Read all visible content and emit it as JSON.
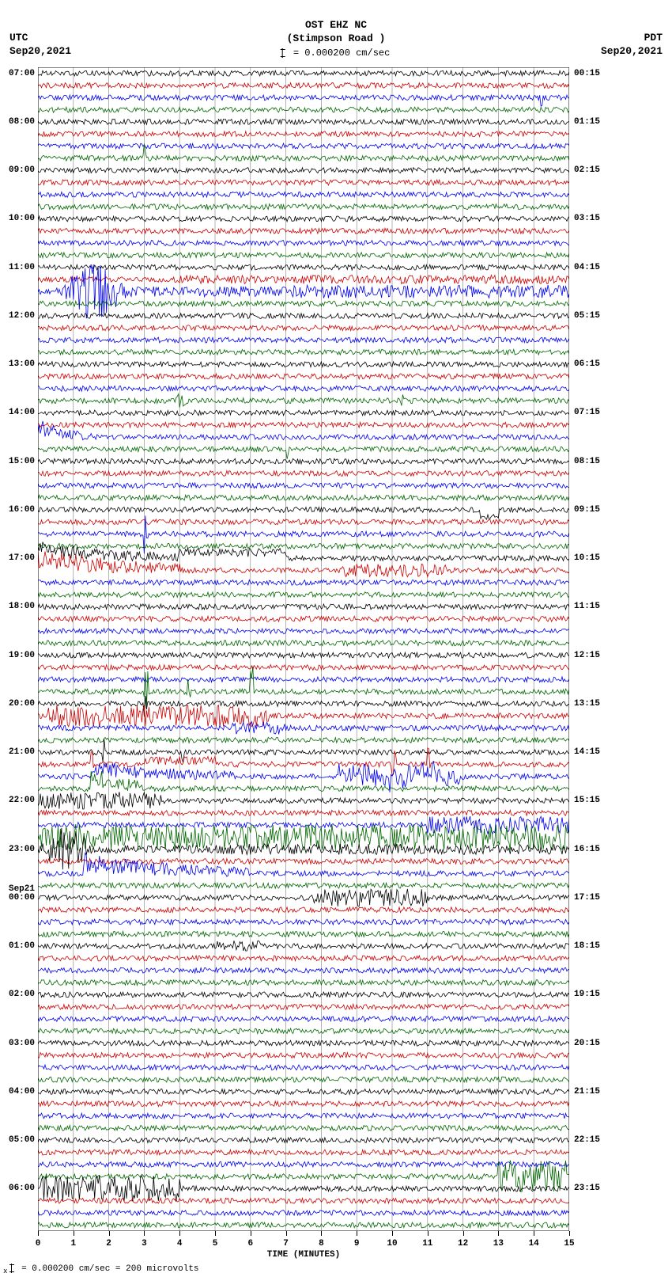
{
  "header": {
    "station": "OST EHZ NC",
    "location": "(Stimpson Road )",
    "scale_text": " = 0.000200 cm/sec",
    "left_tz": "UTC",
    "left_date": "Sep20,2021",
    "right_tz": "PDT",
    "right_date": "Sep20,2021"
  },
  "plot": {
    "type": "seismogram-helicorder",
    "width_min": 15,
    "num_traces": 96,
    "trace_colors": [
      "#000000",
      "#cc0000",
      "#0000ee",
      "#006600"
    ],
    "background_color": "#ffffff",
    "grid_color": "#808080",
    "grid_minutes": [
      0,
      1,
      2,
      3,
      4,
      5,
      6,
      7,
      8,
      9,
      10,
      11,
      12,
      13,
      14,
      15
    ],
    "noise_base_amp": 0.25,
    "events": [
      {
        "trace": 2,
        "start": 14.2,
        "end": 14.25,
        "amp": 1.5,
        "type": "spike"
      },
      {
        "trace": 7,
        "start": 3.0,
        "end": 3.05,
        "amp": 2.0,
        "type": "spike"
      },
      {
        "trace": 17,
        "start": 4.0,
        "end": 15.0,
        "amp": 0.4,
        "type": "noise"
      },
      {
        "trace": 18,
        "start": 0.5,
        "end": 7.0,
        "amp": 3.2,
        "type": "burst"
      },
      {
        "trace": 18,
        "start": 7.0,
        "end": 15.0,
        "amp": 0.6,
        "type": "noise"
      },
      {
        "trace": 27,
        "start": 3.8,
        "end": 5.2,
        "amp": 0.8,
        "type": "burst"
      },
      {
        "trace": 27,
        "start": 10.2,
        "end": 10.7,
        "amp": 0.8,
        "type": "burst"
      },
      {
        "trace": 30,
        "start": 0.0,
        "end": 1.5,
        "amp": 1.5,
        "type": "stepdecay"
      },
      {
        "trace": 31,
        "start": 7.0,
        "end": 7.1,
        "amp": 1.0,
        "type": "spike"
      },
      {
        "trace": 36,
        "start": 12.5,
        "end": 13.0,
        "amp": 1.0,
        "type": "dip"
      },
      {
        "trace": 38,
        "start": 3.0,
        "end": 3.1,
        "amp": 2.0,
        "type": "spike"
      },
      {
        "trace": 40,
        "start": 0.0,
        "end": 4.0,
        "amp": 1.2,
        "type": "stepdecay"
      },
      {
        "trace": 40,
        "start": 4.0,
        "end": 7.0,
        "amp": 0.8,
        "type": "step"
      },
      {
        "trace": 41,
        "start": 0.0,
        "end": 4.0,
        "amp": 1.8,
        "type": "stepdecay"
      },
      {
        "trace": 41,
        "start": 8.5,
        "end": 11.5,
        "amp": 0.6,
        "type": "noise"
      },
      {
        "trace": 51,
        "start": 3.0,
        "end": 3.1,
        "amp": 2.0,
        "type": "spike"
      },
      {
        "trace": 51,
        "start": 4.2,
        "end": 4.3,
        "amp": 1.2,
        "type": "spike"
      },
      {
        "trace": 51,
        "start": 6.0,
        "end": 6.1,
        "amp": 3.0,
        "type": "spike"
      },
      {
        "trace": 52,
        "start": 3.0,
        "end": 3.1,
        "amp": 2.0,
        "type": "spike"
      },
      {
        "trace": 53,
        "start": 0.3,
        "end": 6.5,
        "amp": 1.0,
        "type": "noise"
      },
      {
        "trace": 54,
        "start": 5.4,
        "end": 7.0,
        "amp": 0.6,
        "type": "noise"
      },
      {
        "trace": 56,
        "start": 1.8,
        "end": 1.9,
        "amp": 1.5,
        "type": "spike"
      },
      {
        "trace": 56,
        "start": 4.0,
        "end": 4.1,
        "amp": 1.2,
        "type": "spike"
      },
      {
        "trace": 57,
        "start": 1.5,
        "end": 1.6,
        "amp": 2.5,
        "type": "spike"
      },
      {
        "trace": 57,
        "start": 3.0,
        "end": 5.0,
        "amp": 0.5,
        "type": "step"
      },
      {
        "trace": 57,
        "start": 10.0,
        "end": 10.1,
        "amp": 2.5,
        "type": "spike"
      },
      {
        "trace": 57,
        "start": 11.0,
        "end": 11.1,
        "amp": 2.0,
        "type": "spike"
      },
      {
        "trace": 58,
        "start": 1.5,
        "end": 5.5,
        "amp": 1.2,
        "type": "stepdecay"
      },
      {
        "trace": 58,
        "start": 8.5,
        "end": 12.0,
        "amp": 1.2,
        "type": "irregular"
      },
      {
        "trace": 59,
        "start": 1.5,
        "end": 3.0,
        "amp": 2.0,
        "type": "stepdecay"
      },
      {
        "trace": 60,
        "start": 0.0,
        "end": 3.5,
        "amp": 0.8,
        "type": "noise"
      },
      {
        "trace": 62,
        "start": 11.0,
        "end": 15.0,
        "amp": 0.8,
        "type": "noise"
      },
      {
        "trace": 63,
        "start": 0.0,
        "end": 15.0,
        "amp": 1.2,
        "type": "noise"
      },
      {
        "trace": 64,
        "start": 0.0,
        "end": 5.0,
        "amp": 2.5,
        "type": "burst"
      },
      {
        "trace": 64,
        "start": 5.0,
        "end": 15.0,
        "amp": 0.5,
        "type": "noise"
      },
      {
        "trace": 66,
        "start": 1.3,
        "end": 6.0,
        "amp": 1.5,
        "type": "stepdecay"
      },
      {
        "trace": 68,
        "start": 7.8,
        "end": 11.0,
        "amp": 0.8,
        "type": "noise"
      },
      {
        "trace": 72,
        "start": 5.0,
        "end": 6.3,
        "amp": 0.5,
        "type": "noise"
      },
      {
        "trace": 91,
        "start": 13.0,
        "end": 15.0,
        "amp": 1.5,
        "type": "noise"
      },
      {
        "trace": 92,
        "start": 0.0,
        "end": 4.0,
        "amp": 1.2,
        "type": "noise"
      }
    ]
  },
  "left_labels": [
    {
      "text": "07:00",
      "trace": 0
    },
    {
      "text": "08:00",
      "trace": 4
    },
    {
      "text": "09:00",
      "trace": 8
    },
    {
      "text": "10:00",
      "trace": 12
    },
    {
      "text": "11:00",
      "trace": 16
    },
    {
      "text": "12:00",
      "trace": 20
    },
    {
      "text": "13:00",
      "trace": 24
    },
    {
      "text": "14:00",
      "trace": 28
    },
    {
      "text": "15:00",
      "trace": 32
    },
    {
      "text": "16:00",
      "trace": 36
    },
    {
      "text": "17:00",
      "trace": 40
    },
    {
      "text": "18:00",
      "trace": 44
    },
    {
      "text": "19:00",
      "trace": 48
    },
    {
      "text": "20:00",
      "trace": 52
    },
    {
      "text": "21:00",
      "trace": 56
    },
    {
      "text": "22:00",
      "trace": 60
    },
    {
      "text": "23:00",
      "trace": 64
    },
    {
      "text": "Sep21",
      "trace": 67.3
    },
    {
      "text": "00:00",
      "trace": 68
    },
    {
      "text": "01:00",
      "trace": 72
    },
    {
      "text": "02:00",
      "trace": 76
    },
    {
      "text": "03:00",
      "trace": 80
    },
    {
      "text": "04:00",
      "trace": 84
    },
    {
      "text": "05:00",
      "trace": 88
    },
    {
      "text": "06:00",
      "trace": 92
    }
  ],
  "right_labels": [
    {
      "text": "00:15",
      "trace": 0
    },
    {
      "text": "01:15",
      "trace": 4
    },
    {
      "text": "02:15",
      "trace": 8
    },
    {
      "text": "03:15",
      "trace": 12
    },
    {
      "text": "04:15",
      "trace": 16
    },
    {
      "text": "05:15",
      "trace": 20
    },
    {
      "text": "06:15",
      "trace": 24
    },
    {
      "text": "07:15",
      "trace": 28
    },
    {
      "text": "08:15",
      "trace": 32
    },
    {
      "text": "09:15",
      "trace": 36
    },
    {
      "text": "10:15",
      "trace": 40
    },
    {
      "text": "11:15",
      "trace": 44
    },
    {
      "text": "12:15",
      "trace": 48
    },
    {
      "text": "13:15",
      "trace": 52
    },
    {
      "text": "14:15",
      "trace": 56
    },
    {
      "text": "15:15",
      "trace": 60
    },
    {
      "text": "16:15",
      "trace": 64
    },
    {
      "text": "17:15",
      "trace": 68
    },
    {
      "text": "18:15",
      "trace": 72
    },
    {
      "text": "19:15",
      "trace": 76
    },
    {
      "text": "20:15",
      "trace": 80
    },
    {
      "text": "21:15",
      "trace": 84
    },
    {
      "text": "22:15",
      "trace": 88
    },
    {
      "text": "23:15",
      "trace": 92
    }
  ],
  "x_axis": {
    "ticks": [
      0,
      1,
      2,
      3,
      4,
      5,
      6,
      7,
      8,
      9,
      10,
      11,
      12,
      13,
      14,
      15
    ],
    "title": "TIME (MINUTES)"
  },
  "footer": {
    "text": " = 0.000200 cm/sec =    200 microvolts"
  }
}
